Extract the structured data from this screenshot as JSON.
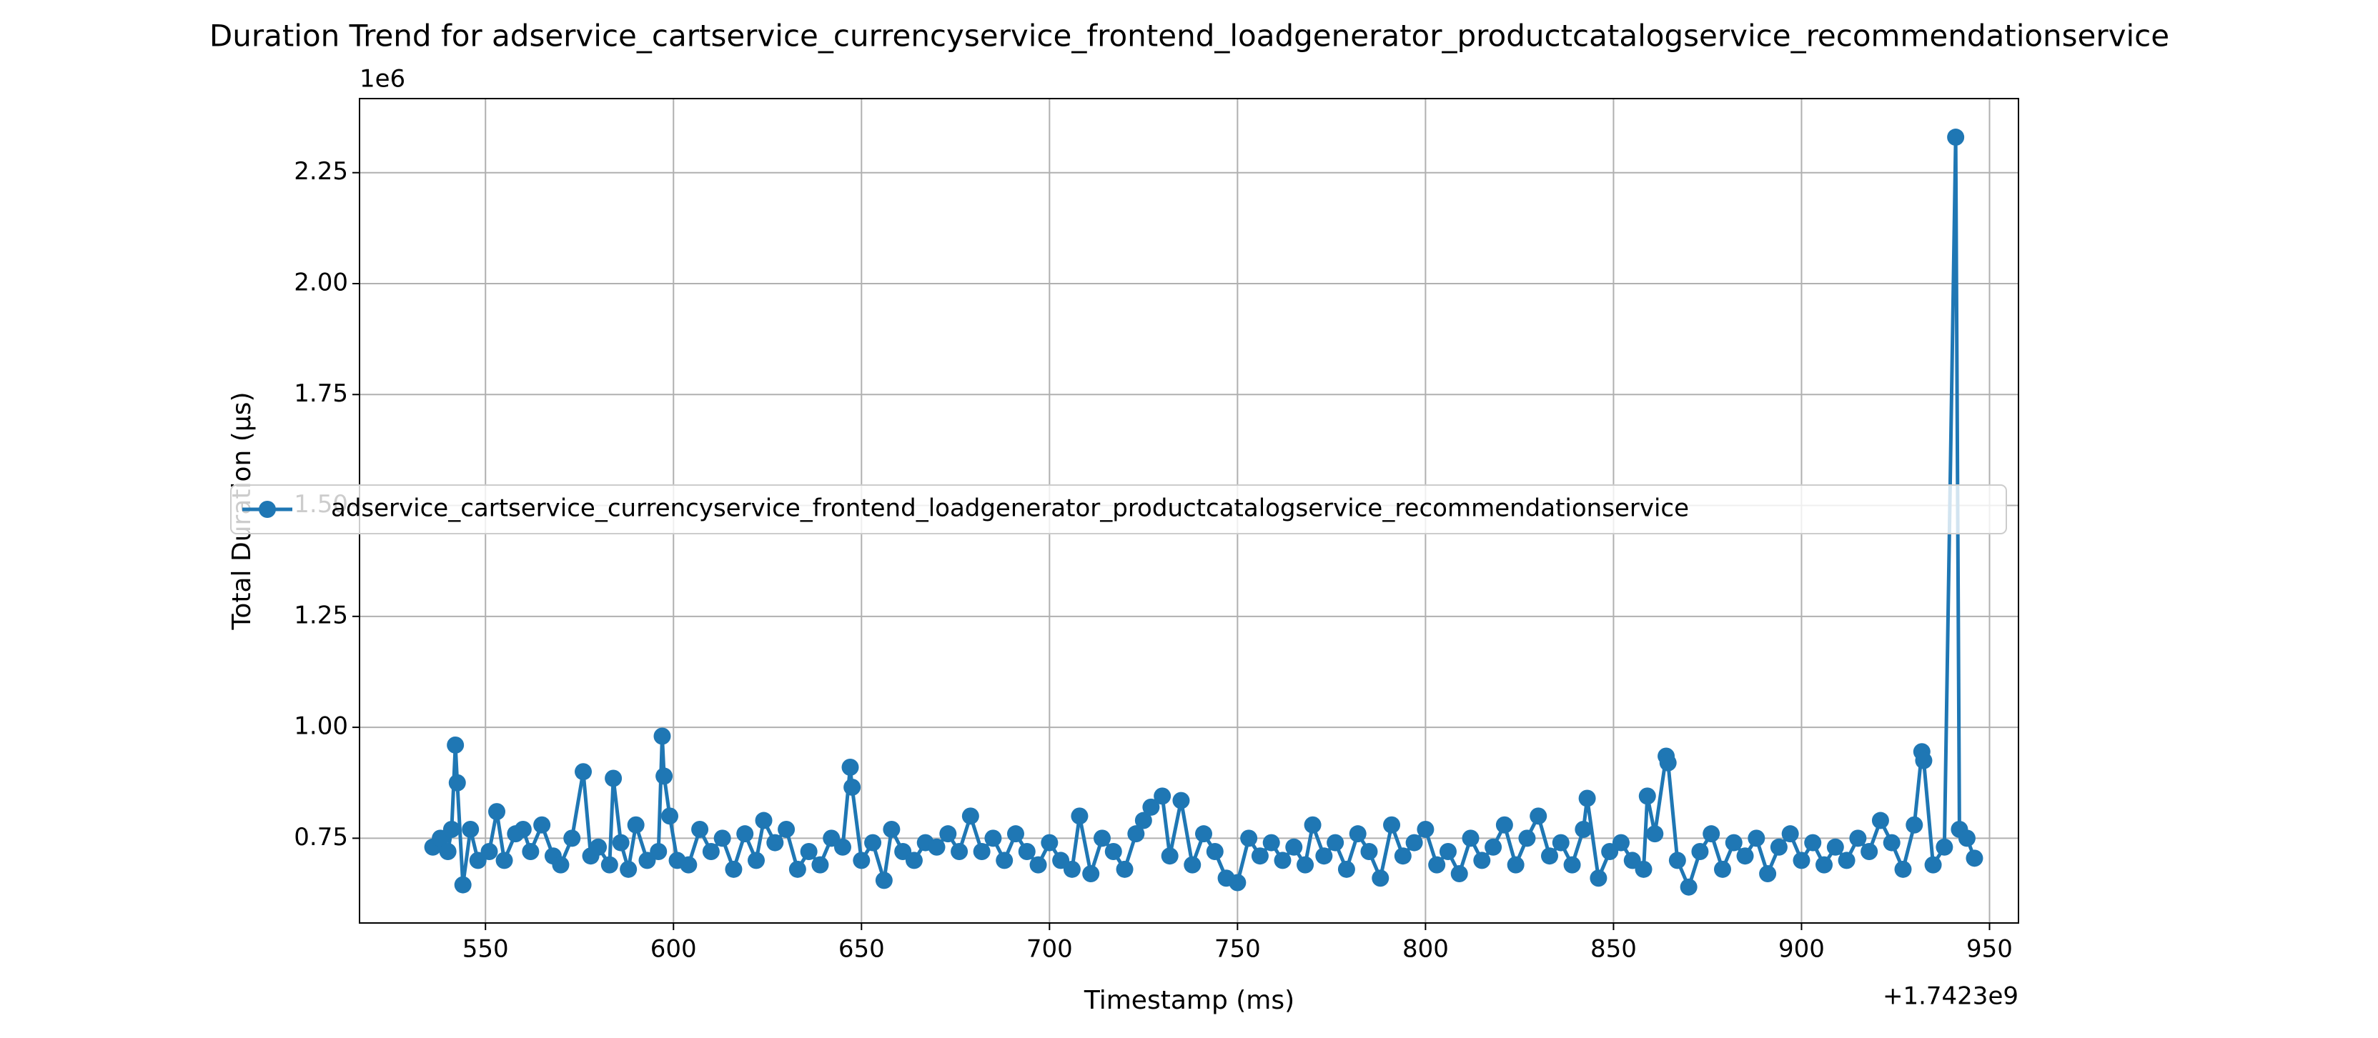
{
  "chart_data": {
    "type": "line",
    "title": "Duration Trend for adservice_cartservice_currencyservice_frontend_loadgenerator_productcatalogservice_recommendationservice",
    "xlabel": "Timestamp (ms)",
    "ylabel": "Total Duration (µs)",
    "x_offset_label": "+1.7423e9",
    "y_offset_label": "1e6",
    "x": [
      536,
      538,
      540,
      541,
      542,
      542.5,
      544,
      546,
      548,
      551,
      553,
      555,
      558,
      560,
      562,
      565,
      568,
      570,
      573,
      576,
      578,
      580,
      583,
      584,
      586,
      588,
      590,
      593,
      596,
      597,
      597.5,
      599,
      601,
      604,
      607,
      610,
      613,
      616,
      619,
      622,
      624,
      627,
      630,
      633,
      636,
      639,
      642,
      645,
      647,
      647.5,
      650,
      653,
      656,
      658,
      661,
      664,
      667,
      670,
      673,
      676,
      679,
      682,
      685,
      688,
      691,
      694,
      697,
      700,
      703,
      706,
      708,
      711,
      714,
      717,
      720,
      723,
      725,
      727,
      730,
      732,
      735,
      738,
      741,
      744,
      747,
      750,
      753,
      756,
      759,
      762,
      765,
      768,
      770,
      773,
      776,
      779,
      782,
      785,
      788,
      791,
      794,
      797,
      800,
      803,
      806,
      809,
      812,
      815,
      818,
      821,
      824,
      827,
      830,
      833,
      836,
      839,
      842,
      843,
      846,
      849,
      852,
      855,
      858,
      859,
      861,
      864,
      864.5,
      867,
      870,
      873,
      876,
      879,
      882,
      885,
      888,
      891,
      894,
      897,
      900,
      903,
      906,
      909,
      912,
      915,
      918,
      921,
      924,
      927,
      930,
      932,
      932.5,
      935,
      938,
      941,
      942,
      944,
      946
    ],
    "series": [
      {
        "name": "adservice_cartservice_currencyservice_frontend_loadgenerator_productcatalogservice_recommendationservice",
        "color": "#1f77b4",
        "values": [
          0.73,
          0.75,
          0.72,
          0.77,
          0.96,
          0.875,
          0.645,
          0.77,
          0.7,
          0.72,
          0.81,
          0.7,
          0.76,
          0.77,
          0.72,
          0.78,
          0.71,
          0.69,
          0.75,
          0.9,
          0.71,
          0.73,
          0.69,
          0.885,
          0.74,
          0.68,
          0.78,
          0.7,
          0.72,
          0.98,
          0.89,
          0.8,
          0.7,
          0.69,
          0.77,
          0.72,
          0.75,
          0.68,
          0.76,
          0.7,
          0.79,
          0.74,
          0.77,
          0.68,
          0.72,
          0.69,
          0.75,
          0.73,
          0.91,
          0.865,
          0.7,
          0.74,
          0.655,
          0.77,
          0.72,
          0.7,
          0.74,
          0.73,
          0.76,
          0.72,
          0.8,
          0.72,
          0.75,
          0.7,
          0.76,
          0.72,
          0.69,
          0.74,
          0.7,
          0.68,
          0.8,
          0.67,
          0.75,
          0.72,
          0.68,
          0.76,
          0.79,
          0.82,
          0.845,
          0.71,
          0.835,
          0.69,
          0.76,
          0.72,
          0.66,
          0.65,
          0.75,
          0.71,
          0.74,
          0.7,
          0.73,
          0.69,
          0.78,
          0.71,
          0.74,
          0.68,
          0.76,
          0.72,
          0.66,
          0.78,
          0.71,
          0.74,
          0.77,
          0.69,
          0.72,
          0.67,
          0.75,
          0.7,
          0.73,
          0.78,
          0.69,
          0.75,
          0.8,
          0.71,
          0.74,
          0.69,
          0.77,
          0.84,
          0.66,
          0.72,
          0.74,
          0.7,
          0.68,
          0.845,
          0.76,
          0.935,
          0.92,
          0.7,
          0.64,
          0.72,
          0.76,
          0.68,
          0.74,
          0.71,
          0.75,
          0.67,
          0.73,
          0.76,
          0.7,
          0.74,
          0.69,
          0.73,
          0.7,
          0.75,
          0.72,
          0.79,
          0.74,
          0.68,
          0.78,
          0.945,
          0.925,
          0.69,
          0.73,
          2.33,
          0.77,
          0.75,
          0.705
        ]
      }
    ],
    "xlim": [
      516.5,
      957.7
    ],
    "ylim": [
      0.559,
      2.417
    ],
    "xticks": [
      550,
      600,
      650,
      700,
      750,
      800,
      850,
      900,
      950
    ],
    "yticks": [
      0.75,
      {
        "value": 1,
        "label": "1.00"
      },
      1.25,
      {
        "value": 1.5,
        "label": "1.50"
      },
      1.75,
      {
        "value": 2,
        "label": "2.00"
      },
      2.25
    ],
    "grid": true,
    "legend": "center left"
  }
}
